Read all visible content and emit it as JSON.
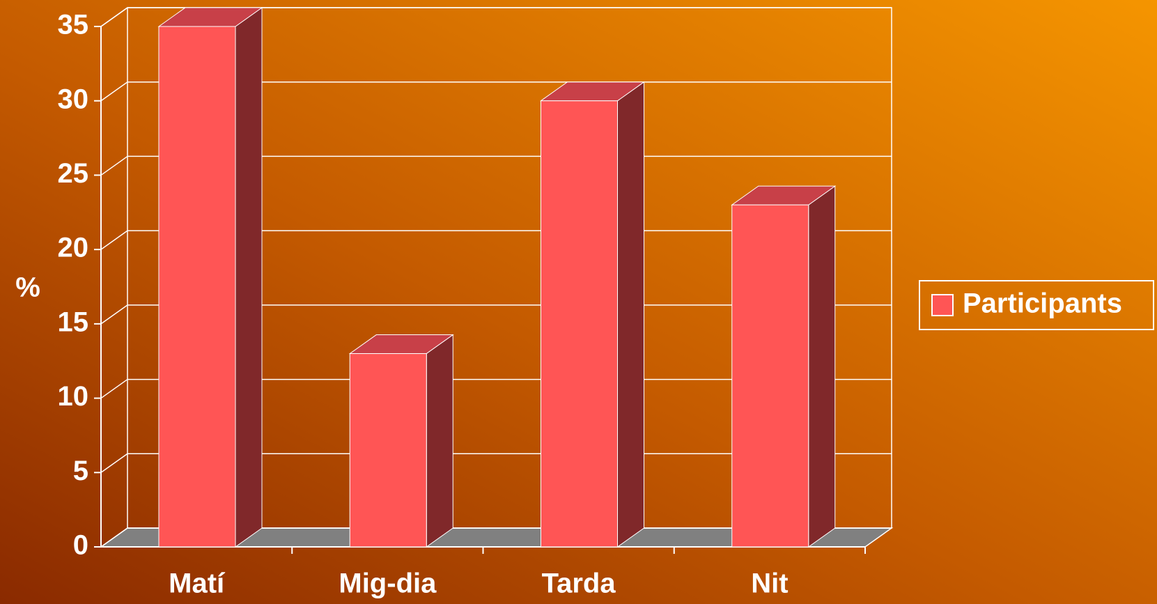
{
  "chart_data": {
    "type": "bar",
    "y_label": "%",
    "categories": [
      "Matí",
      "Mig-dia",
      "Tarda",
      "Nit"
    ],
    "series": [
      {
        "name": "Participants",
        "color": "#ff5555",
        "values": [
          35,
          13,
          30,
          23
        ]
      }
    ],
    "ylim": [
      0,
      35
    ],
    "yticks": [
      0,
      5,
      10,
      15,
      20,
      25,
      30,
      35
    ],
    "grid": true,
    "legend": "right"
  }
}
